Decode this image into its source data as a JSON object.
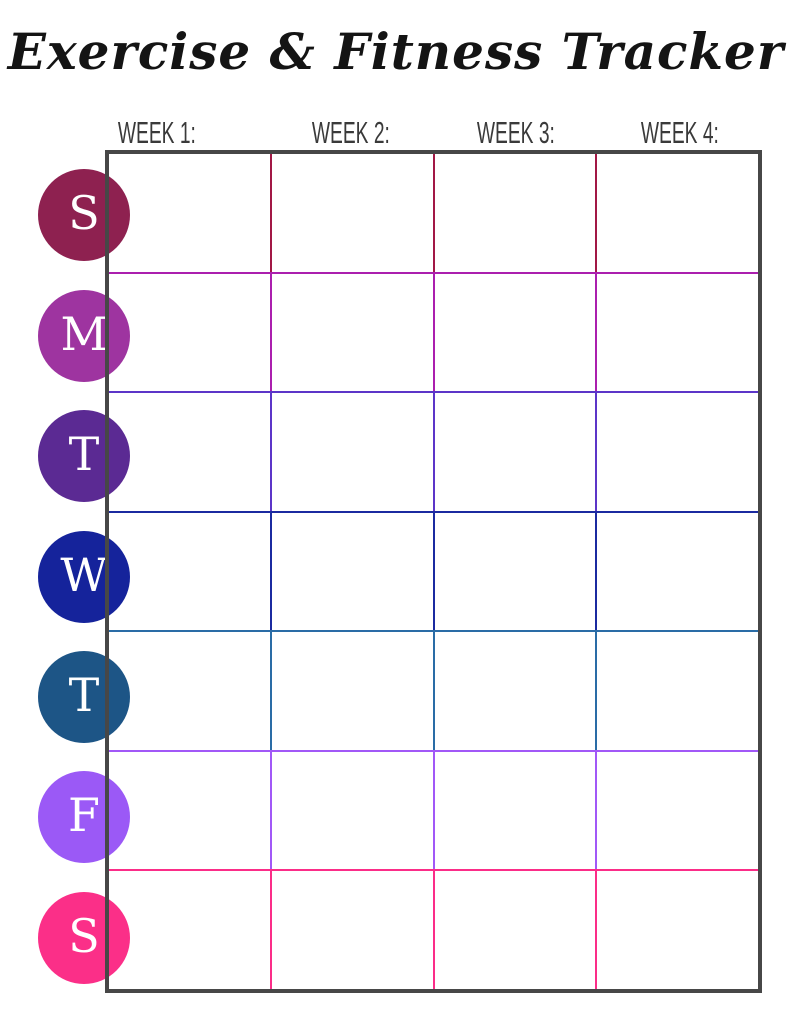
{
  "page": {
    "title": "Exercise & Fitness Tracker",
    "background_color": "#ffffff"
  },
  "week_headers": [
    "WEEK 1:",
    "WEEK 2:",
    "WEEK 3:",
    "WEEK 4:"
  ],
  "grid": {
    "columns": 4,
    "rows": 7,
    "frame_color": "#474747"
  },
  "days": [
    {
      "letter": "S",
      "day": "sunday",
      "circle_color": "#8e2150",
      "line_color": "#a21845"
    },
    {
      "letter": "M",
      "day": "monday",
      "circle_color": "#9e34a0",
      "line_color": "#ab1fae"
    },
    {
      "letter": "T",
      "day": "tuesday",
      "circle_color": "#5b2a93",
      "line_color": "#5c35c8"
    },
    {
      "letter": "W",
      "day": "wednesday",
      "circle_color": "#15239b",
      "line_color": "#1b2aa0"
    },
    {
      "letter": "T",
      "day": "thursday",
      "circle_color": "#1d5586",
      "line_color": "#2a6ca6"
    },
    {
      "letter": "F",
      "day": "friday",
      "circle_color": "#9b59f6",
      "line_color": "#a158f7"
    },
    {
      "letter": "S",
      "day": "saturday",
      "circle_color": "#fb2f88",
      "line_color": "#fb2d88"
    }
  ]
}
